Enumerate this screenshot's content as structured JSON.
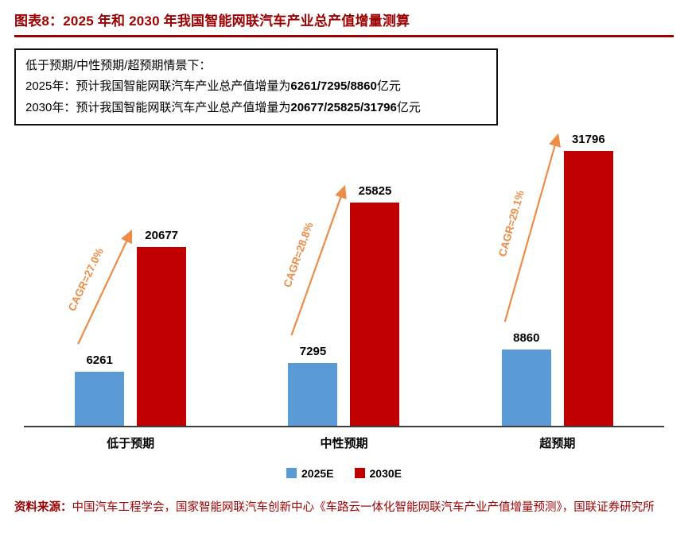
{
  "colors": {
    "accent_red": "#9C0000",
    "bar_blue": "#5B9BD5",
    "bar_red": "#C00000",
    "arrow_orange": "#ED8C46",
    "axis_gray": "#3F3F3F"
  },
  "note_box": {
    "line1": "低于预期/中性预期/超预期情景下：",
    "line2": {
      "prefix": "2025年：预计我国智能网联汽车产业总产值增量为",
      "values": "6261/7295/8860",
      "suffix": "亿元"
    },
    "line3": {
      "prefix": "2030年：预计我国智能网联汽车产业总产值增量为",
      "values": "20677/25825/31796",
      "suffix": "亿元"
    }
  },
  "chart_data": {
    "type": "bar",
    "title": "图表8：2025 年和 2030 年我国智能网联汽车产业总产值增量测算",
    "categories": [
      "低于预期",
      "中性预期",
      "超预期"
    ],
    "series": [
      {
        "name": "2025E",
        "color": "#5B9BD5",
        "values": [
          6261,
          7295,
          8860
        ]
      },
      {
        "name": "2030E",
        "color": "#C00000",
        "values": [
          20677,
          25825,
          31796
        ]
      }
    ],
    "cagr_labels": [
      "CAGR=27.0%",
      "CAGR=28.8%",
      "CAGR=29.1%"
    ],
    "xlabel": "",
    "ylabel": "",
    "ylim": [
      0,
      34000
    ],
    "grid": false,
    "legend_position": "bottom",
    "unit": "亿元"
  },
  "footer": {
    "source_label": "资料来源：",
    "source_text": "中国汽车工程学会，国家智能网联汽车创新中心《车路云一体化智能网联汽车产业产值增量预测》，国联证券研究所"
  }
}
